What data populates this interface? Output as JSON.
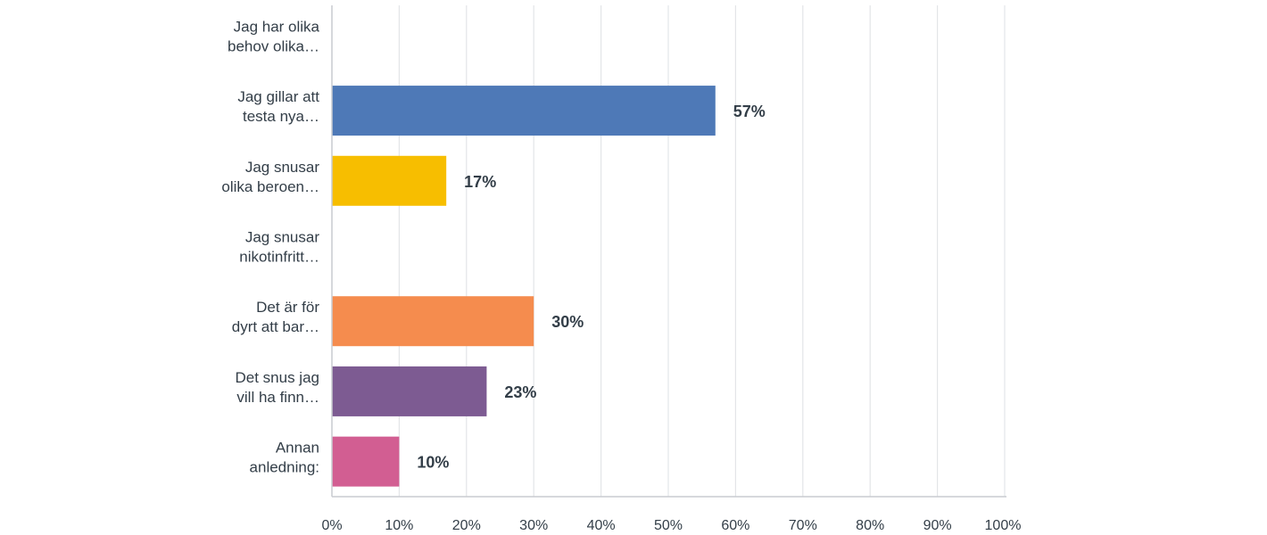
{
  "chart_data": {
    "type": "bar",
    "orientation": "horizontal",
    "categories": [
      [
        "Jag har olika",
        "behov olika…"
      ],
      [
        "Jag gillar att",
        "testa nya…"
      ],
      [
        "Jag snusar",
        "olika beroen…"
      ],
      [
        "Jag snusar",
        "nikotinfritt…"
      ],
      [
        "Det är för",
        "dyrt att bar…"
      ],
      [
        "Det snus jag",
        "vill ha finn…"
      ],
      [
        "Annan",
        "anledning:"
      ]
    ],
    "values": [
      0,
      57,
      17,
      0,
      30,
      23,
      10
    ],
    "value_labels": [
      "",
      "57%",
      "17%",
      "",
      "30%",
      "23%",
      "10%"
    ],
    "colors": [
      "#4e79b7",
      "#4e79b7",
      "#f7be00",
      "#f58c4e",
      "#f58c4e",
      "#7d5b92",
      "#d25e92"
    ],
    "xlim": [
      0,
      100
    ],
    "xticks": [
      0,
      10,
      20,
      30,
      40,
      50,
      60,
      70,
      80,
      90,
      100
    ],
    "xtick_labels": [
      "0%",
      "10%",
      "20%",
      "30%",
      "40%",
      "50%",
      "60%",
      "70%",
      "80%",
      "90%",
      "100%"
    ],
    "grid": "vertical",
    "gridline_color": "#e3e5e8",
    "axis_color": "#c9ccd0",
    "title": "",
    "xlabel": "",
    "ylabel": ""
  }
}
